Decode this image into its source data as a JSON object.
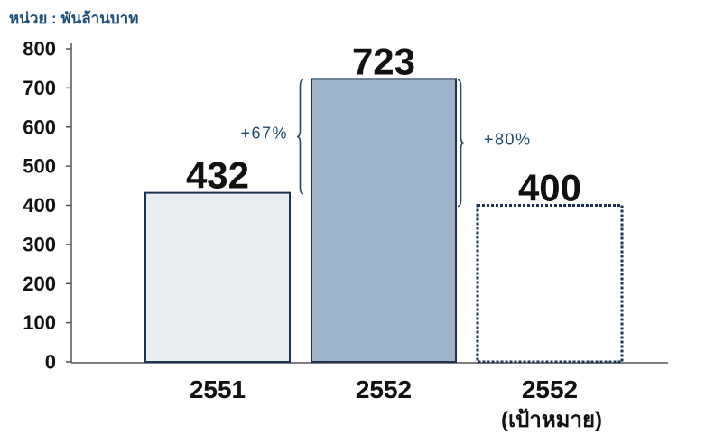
{
  "colors": {
    "axis": "#555555",
    "annotation": "#1f4a6e",
    "unit_label": "#1d4e7a",
    "bar_outline": "#1c3352"
  },
  "chart_data": {
    "type": "bar",
    "unit_label": "หน่วย : พันล้านบาท",
    "categories": [
      "2551",
      "2552",
      "2552"
    ],
    "category_sublabels": [
      null,
      null,
      "(เป้าหมาย)"
    ],
    "values": [
      432,
      723,
      400
    ],
    "ylim": [
      0,
      800
    ],
    "yticks": [
      0,
      100,
      200,
      300,
      400,
      500,
      600,
      700,
      800
    ],
    "grid": false,
    "show_legend": false,
    "bar_fills": [
      "#e9edf1",
      "#9fb3c8",
      "#ffffff"
    ],
    "dashed_outline": [
      false,
      false,
      true
    ],
    "annotations": [
      {
        "text": "+67%",
        "from": 0,
        "to": 1
      },
      {
        "text": "+80%",
        "from": 1,
        "to": 2
      }
    ]
  }
}
